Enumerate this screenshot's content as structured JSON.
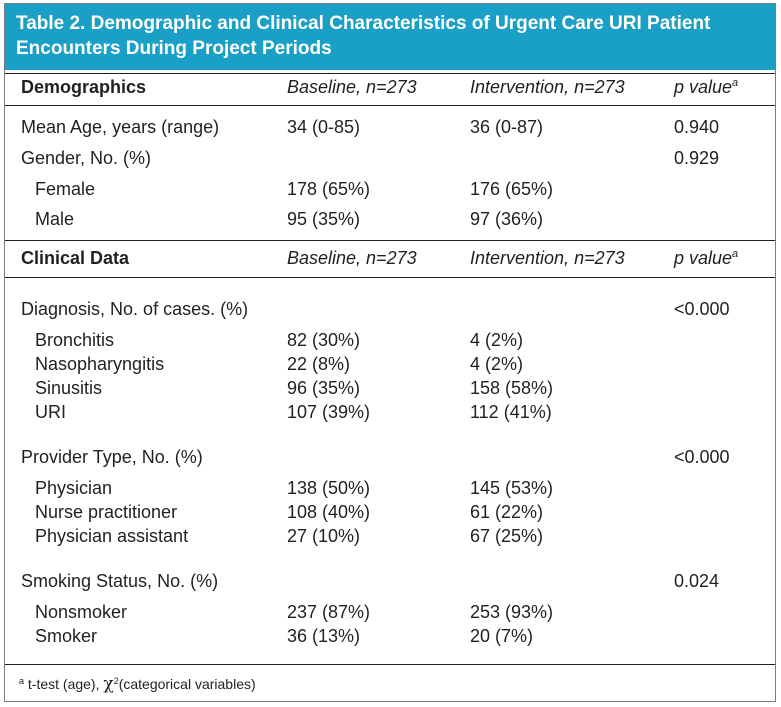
{
  "title": {
    "line1": "Table 2. Demographic and Clinical Characteristics of Urgent Care URI Patient",
    "line2": "Encounters During Project Periods"
  },
  "demographics": {
    "header": {
      "label": "Demographics",
      "baseline": "Baseline, n=273",
      "intervention": "Intervention, n=273",
      "pvalue": "p value",
      "pvalue_sup": "a"
    },
    "rows": [
      {
        "label": "Mean Age, years (range)",
        "baseline": "34 (0-85)",
        "intervention": "36 (0-87)",
        "pvalue": "0.940"
      },
      {
        "label": "Gender, No. (%)",
        "baseline": "",
        "intervention": "",
        "pvalue": "0.929"
      },
      {
        "label": "Female",
        "baseline": "178 (65%)",
        "intervention": "176 (65%)",
        "pvalue": ""
      },
      {
        "label": "Male",
        "baseline": "95 (35%)",
        "intervention": "97 (36%)",
        "pvalue": ""
      }
    ]
  },
  "clinical": {
    "header": {
      "label": "Clinical Data",
      "baseline": "Baseline, n=273",
      "intervention": "Intervention, n=273",
      "pvalue": "p value",
      "pvalue_sup": "a"
    },
    "rows": [
      {
        "label": "Diagnosis, No. of cases. (%)",
        "baseline": "",
        "intervention": "",
        "pvalue": "<0.000"
      },
      {
        "label": "Bronchitis",
        "baseline": "82 (30%)",
        "intervention": "4 (2%)",
        "pvalue": ""
      },
      {
        "label": "Nasopharyngitis",
        "baseline": "22 (8%)",
        "intervention": "4 (2%)",
        "pvalue": ""
      },
      {
        "label": "Sinusitis",
        "baseline": "96 (35%)",
        "intervention": "158 (58%)",
        "pvalue": ""
      },
      {
        "label": "URI",
        "baseline": "107 (39%)",
        "intervention": "112 (41%)",
        "pvalue": ""
      },
      {
        "label": "Provider Type, No. (%)",
        "baseline": "",
        "intervention": "",
        "pvalue": "<0.000"
      },
      {
        "label": "Physician",
        "baseline": "138 (50%)",
        "intervention": "145 (53%)",
        "pvalue": ""
      },
      {
        "label": "Nurse practitioner",
        "baseline": "108 (40%)",
        "intervention": "61 (22%)",
        "pvalue": ""
      },
      {
        "label": "Physician assistant",
        "baseline": "27 (10%)",
        "intervention": "67 (25%)",
        "pvalue": ""
      },
      {
        "label": "Smoking Status, No. (%)",
        "baseline": "",
        "intervention": "",
        "pvalue": "0.024"
      },
      {
        "label": "Nonsmoker",
        "baseline": "237 (87%)",
        "intervention": "253 (93%)",
        "pvalue": ""
      },
      {
        "label": "Smoker",
        "baseline": "36 (13%)",
        "intervention": "20 (7%)",
        "pvalue": ""
      }
    ]
  },
  "footnote": {
    "marker": "a",
    "text1": "t-test (age), ",
    "chi": "χ",
    "chi_sup": "2",
    "text2": "(categorical variables)"
  },
  "colors": {
    "title_background": "#1a9fc6",
    "title_text": "#ffffff",
    "body_text": "#231f20",
    "rules": "#231f20"
  }
}
